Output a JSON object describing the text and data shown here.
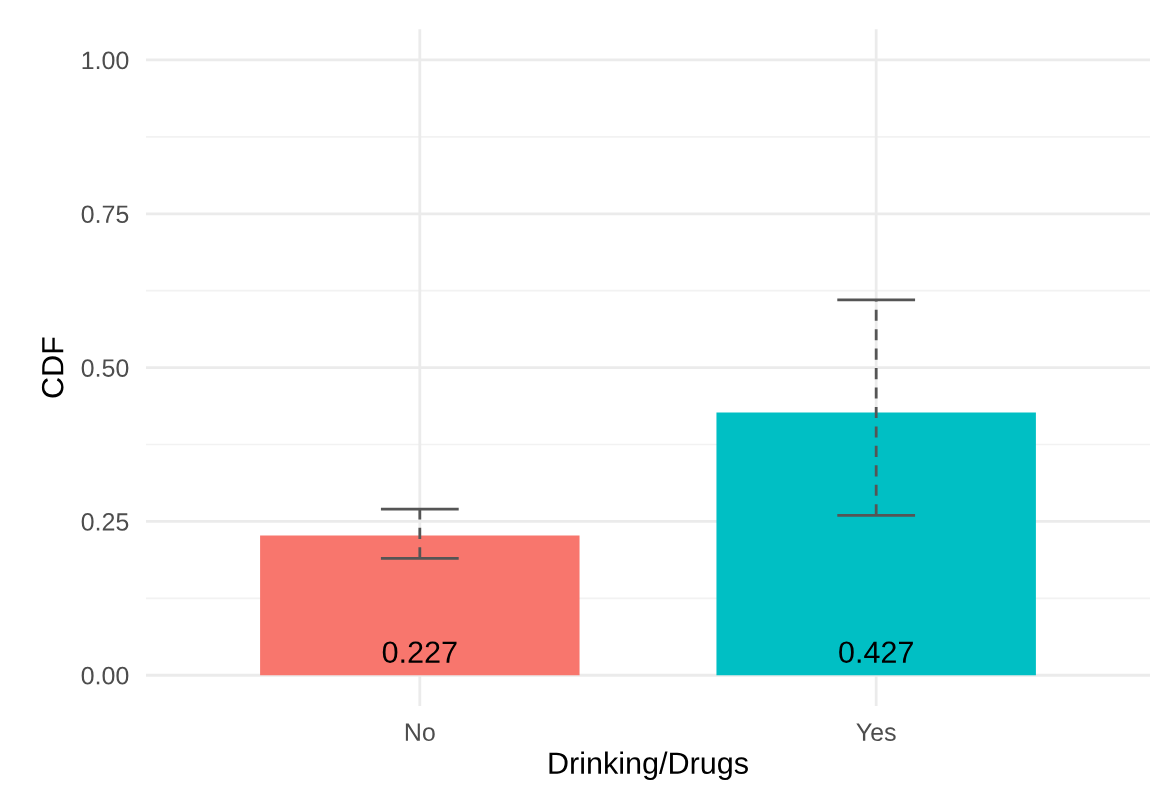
{
  "chart_data": {
    "type": "bar",
    "xlabel": "Drinking/Drugs",
    "ylabel": "CDF",
    "categories": [
      "No",
      "Yes"
    ],
    "values": [
      0.227,
      0.427
    ],
    "colors": [
      "#f8766d",
      "#00bfc4"
    ],
    "errors": [
      [
        0.19,
        0.27
      ],
      [
        0.26,
        0.61
      ]
    ],
    "data_labels": true,
    "ylim": [
      -0.05,
      1.05
    ],
    "yticks": [
      {
        "value": 0,
        "label": "0.00"
      },
      {
        "value": 0.25,
        "label": "0.25"
      },
      {
        "value": 0.5,
        "label": "0.50"
      },
      {
        "value": 0.75,
        "label": "0.75"
      },
      {
        "value": 1,
        "label": "1.00"
      }
    ],
    "grid": true
  }
}
